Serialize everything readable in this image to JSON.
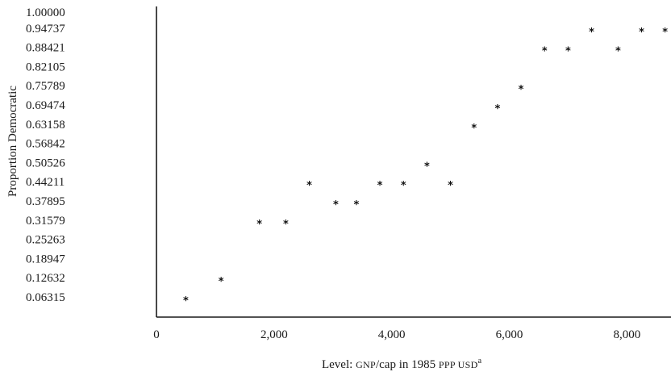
{
  "chart_data": {
    "type": "scatter",
    "title": "",
    "ylabel": "Proportion Democratic",
    "xlabel": {
      "prefix": "Level: ",
      "gnp": "GNP",
      "mid": "/cap in 1985 ",
      "ppp": "PPP USD",
      "sup": "a"
    },
    "xlim": [
      0,
      8750
    ],
    "ylim": [
      0,
      1.0
    ],
    "x_ticks": [
      {
        "value": 0,
        "label": "0"
      },
      {
        "value": 2000,
        "label": "2,000"
      },
      {
        "value": 4000,
        "label": "4,000"
      },
      {
        "value": 6000,
        "label": "6,000"
      },
      {
        "value": 8000,
        "label": "8,000"
      }
    ],
    "y_ticks": [
      {
        "value": 1.0,
        "label": "1.00000"
      },
      {
        "value": 0.94737,
        "label": "0.94737"
      },
      {
        "value": 0.88421,
        "label": "0.88421"
      },
      {
        "value": 0.82105,
        "label": "0.82105"
      },
      {
        "value": 0.75789,
        "label": "0.75789"
      },
      {
        "value": 0.69474,
        "label": "0.69474"
      },
      {
        "value": 0.63158,
        "label": "0.63158"
      },
      {
        "value": 0.56842,
        "label": "0.56842"
      },
      {
        "value": 0.50526,
        "label": "0.50526"
      },
      {
        "value": 0.44211,
        "label": "0.44211"
      },
      {
        "value": 0.37895,
        "label": "0.37895"
      },
      {
        "value": 0.31579,
        "label": "0.31579"
      },
      {
        "value": 0.25263,
        "label": "0.25263"
      },
      {
        "value": 0.18947,
        "label": "0.18947"
      },
      {
        "value": 0.12632,
        "label": "0.12632"
      },
      {
        "value": 0.06315,
        "label": "0.06315"
      }
    ],
    "marker": "*",
    "grid": false,
    "series": [
      {
        "points": [
          {
            "x": 500,
            "y": 0.06315
          },
          {
            "x": 1100,
            "y": 0.12632
          },
          {
            "x": 1750,
            "y": 0.31579
          },
          {
            "x": 2200,
            "y": 0.31579
          },
          {
            "x": 2600,
            "y": 0.44211
          },
          {
            "x": 3050,
            "y": 0.37895
          },
          {
            "x": 3400,
            "y": 0.37895
          },
          {
            "x": 3800,
            "y": 0.44211
          },
          {
            "x": 4200,
            "y": 0.44211
          },
          {
            "x": 4600,
            "y": 0.50526
          },
          {
            "x": 5000,
            "y": 0.44211
          },
          {
            "x": 5400,
            "y": 0.63158
          },
          {
            "x": 5800,
            "y": 0.69474
          },
          {
            "x": 6200,
            "y": 0.75789
          },
          {
            "x": 6600,
            "y": 0.88421
          },
          {
            "x": 7000,
            "y": 0.88421
          },
          {
            "x": 7400,
            "y": 0.94737
          },
          {
            "x": 7850,
            "y": 0.88421
          },
          {
            "x": 8250,
            "y": 0.94737
          },
          {
            "x": 8650,
            "y": 0.94737
          }
        ]
      }
    ]
  }
}
